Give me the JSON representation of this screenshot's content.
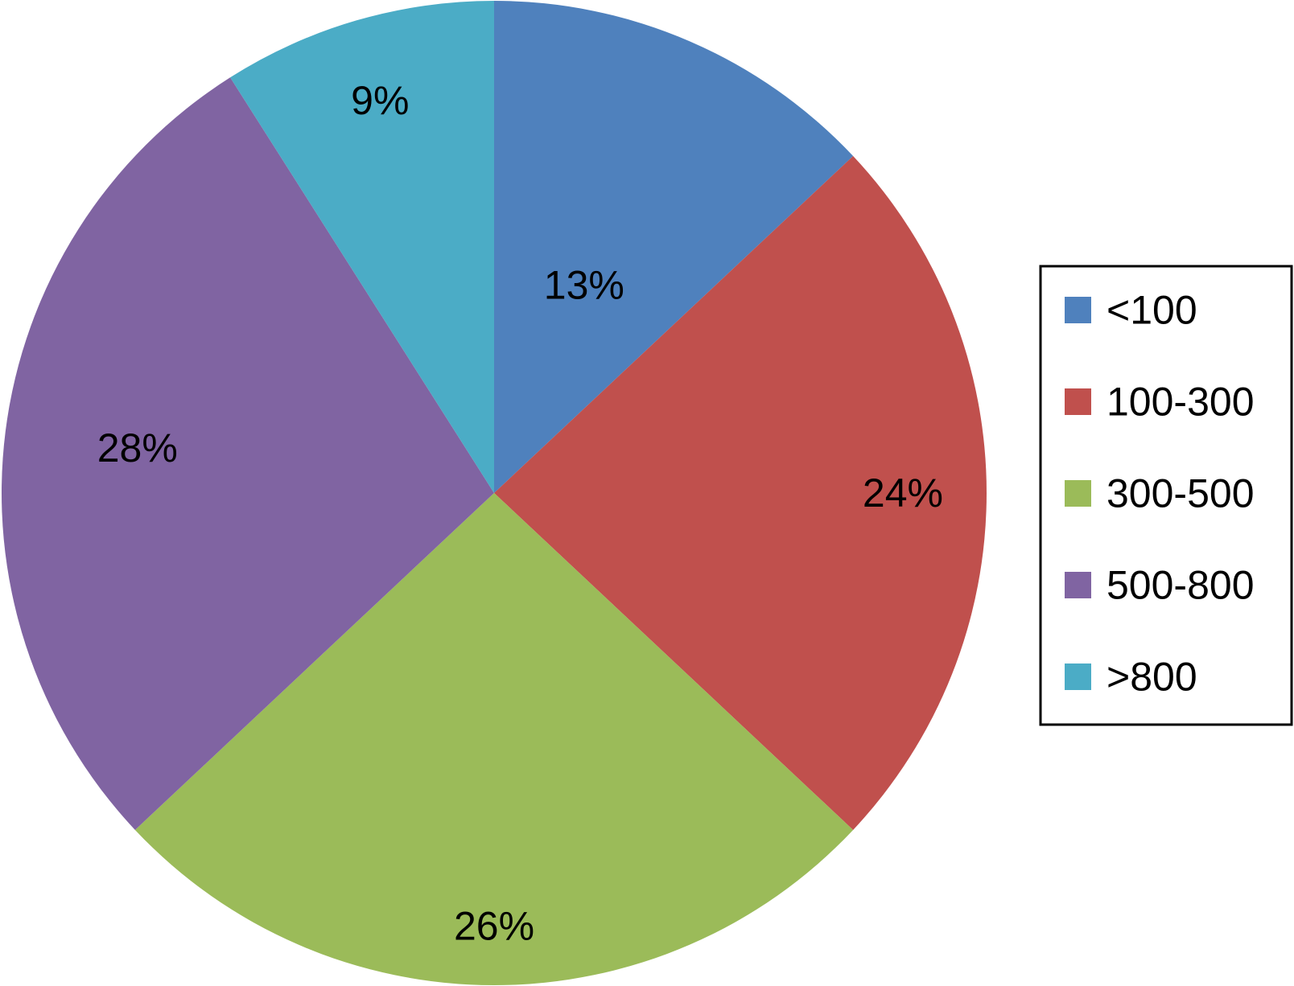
{
  "chart_data": {
    "type": "pie",
    "title": "",
    "categories": [
      "<100",
      "100-300",
      "300-500",
      "500-800",
      ">800"
    ],
    "values": [
      13,
      24,
      26,
      28,
      9
    ],
    "labels": [
      "13%",
      "24%",
      "26%",
      "28%",
      "9%"
    ],
    "colors": [
      "#4F81BD",
      "#C0504D",
      "#9BBB59",
      "#8064A2",
      "#4BACC6"
    ],
    "start_angle": "12 o'clock",
    "direction": "clockwise",
    "legend_position": "right"
  }
}
